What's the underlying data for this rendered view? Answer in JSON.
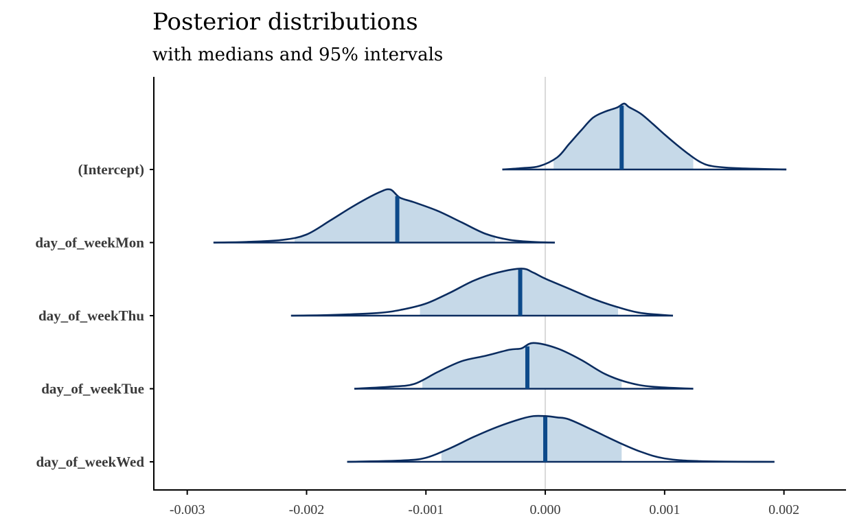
{
  "chart_data": {
    "type": "area",
    "title": "Posterior distributions",
    "subtitle": "with medians and 95% intervals",
    "xlabel": "",
    "ylabel": "",
    "xlim": [
      -0.00328,
      0.00252
    ],
    "x_ticks": [
      -0.003,
      -0.002,
      -0.001,
      0.0,
      0.001,
      0.002
    ],
    "x_tick_labels": [
      "-0.003",
      "-0.002",
      "-0.001",
      "0.000",
      "0.001",
      "0.002"
    ],
    "reference_line_x": 0.0,
    "grid": false,
    "colors": {
      "density_outline": "#0b2c5f",
      "interval_fill": "#c6d9e8",
      "median_line": "#0d4a8a",
      "reference_line": "#d9d9d9"
    },
    "series": [
      {
        "name": "(Intercept)",
        "median": 0.00064,
        "interval_95": [
          7e-05,
          0.00124
        ],
        "range": [
          -0.00036,
          0.00202
        ],
        "density_x": [
          -0.00036,
          -0.0002,
          -5e-05,
          0.0001,
          0.0002,
          0.0003,
          0.0004,
          0.0005,
          0.0006,
          0.00066,
          0.0007,
          0.0008,
          0.0009,
          0.001,
          0.0011,
          0.0012,
          0.0013,
          0.0014,
          0.0016,
          0.00202
        ],
        "density": [
          0.0,
          0.02,
          0.05,
          0.18,
          0.38,
          0.58,
          0.77,
          0.86,
          0.92,
          0.98,
          0.93,
          0.83,
          0.68,
          0.52,
          0.37,
          0.23,
          0.11,
          0.05,
          0.02,
          0.0
        ]
      },
      {
        "name": "day_of_weekMon",
        "median": -0.00124,
        "interval_95": [
          -0.0021,
          -0.00042
        ],
        "range": [
          -0.00278,
          8e-05
        ],
        "density_x": [
          -0.00278,
          -0.0025,
          -0.0022,
          -0.002,
          -0.0018,
          -0.0016,
          -0.0014,
          -0.0013,
          -0.00122,
          -0.0011,
          -0.0009,
          -0.0007,
          -0.0005,
          -0.0003,
          -0.0001,
          8e-05
        ],
        "density": [
          0.0,
          0.01,
          0.04,
          0.12,
          0.33,
          0.55,
          0.74,
          0.79,
          0.67,
          0.6,
          0.47,
          0.3,
          0.13,
          0.04,
          0.01,
          0.0
        ]
      },
      {
        "name": "day_of_weekThu",
        "median": -0.00021,
        "interval_95": [
          -0.00105,
          0.00061
        ],
        "range": [
          -0.00213,
          0.00107
        ],
        "density_x": [
          -0.00213,
          -0.0018,
          -0.0014,
          -0.0012,
          -0.001,
          -0.0008,
          -0.0006,
          -0.0004,
          -0.0002,
          -0.0001,
          0.0,
          0.0002,
          0.0004,
          0.0006,
          0.0008,
          0.00107
        ],
        "density": [
          0.0,
          0.01,
          0.04,
          0.09,
          0.18,
          0.34,
          0.52,
          0.64,
          0.7,
          0.64,
          0.55,
          0.4,
          0.25,
          0.13,
          0.04,
          0.0
        ]
      },
      {
        "name": "day_of_weekTue",
        "median": -0.00015,
        "interval_95": [
          -0.00103,
          0.00064
        ],
        "range": [
          -0.0016,
          0.00124
        ],
        "density_x": [
          -0.0016,
          -0.0013,
          -0.0011,
          -0.0009,
          -0.0007,
          -0.0005,
          -0.0003,
          -0.0002,
          -0.0001,
          0.0001,
          0.0003,
          0.0005,
          0.0007,
          0.0009,
          0.00124
        ],
        "density": [
          0.0,
          0.03,
          0.07,
          0.25,
          0.41,
          0.49,
          0.58,
          0.6,
          0.68,
          0.6,
          0.43,
          0.22,
          0.09,
          0.03,
          0.0
        ]
      },
      {
        "name": "day_of_weekWed",
        "median": 0.0,
        "interval_95": [
          -0.00087,
          0.00064
        ],
        "range": [
          -0.00166,
          0.00192
        ],
        "density_x": [
          -0.00166,
          -0.0012,
          -0.001,
          -0.0008,
          -0.0006,
          -0.0004,
          -0.0002,
          -0.0001,
          0.0,
          0.0001,
          0.0002,
          0.0004,
          0.0006,
          0.0008,
          0.001,
          0.0013,
          0.00192
        ],
        "density": [
          0.0,
          0.02,
          0.06,
          0.2,
          0.37,
          0.52,
          0.64,
          0.68,
          0.68,
          0.66,
          0.63,
          0.47,
          0.3,
          0.15,
          0.05,
          0.01,
          0.0
        ]
      }
    ]
  }
}
